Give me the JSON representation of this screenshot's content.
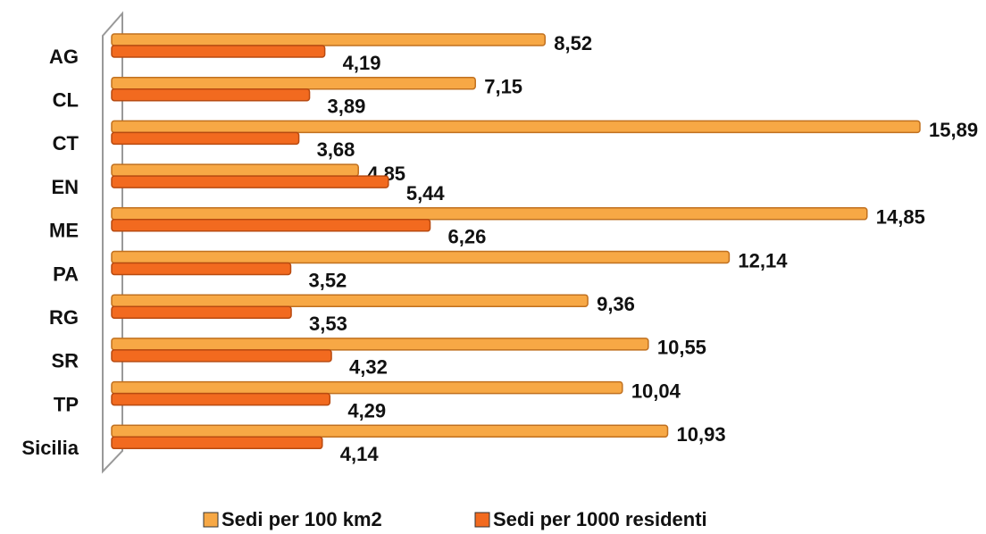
{
  "chart_data": {
    "type": "bar",
    "orientation": "horizontal",
    "categories": [
      "AG",
      "CL",
      "CT",
      "EN",
      "ME",
      "PA",
      "RG",
      "SR",
      "TP",
      "Sicilia"
    ],
    "series": [
      {
        "name": "Sedi per 100 km2",
        "color": "#f7a845",
        "values": [
          8.52,
          7.15,
          15.89,
          4.85,
          14.85,
          12.14,
          9.36,
          10.55,
          10.04,
          10.93
        ],
        "value_labels": [
          "8,52",
          "7,15",
          "15,89",
          "4,85",
          "14,85",
          "12,14",
          "9,36",
          "10,55",
          "10,04",
          "10,93"
        ]
      },
      {
        "name": "Sedi per 1000 residenti",
        "color": "#f26a1f",
        "values": [
          4.19,
          3.89,
          3.68,
          5.44,
          6.26,
          3.52,
          3.53,
          4.32,
          4.29,
          4.14
        ],
        "value_labels": [
          "4,19",
          "3,89",
          "3,68",
          "5,44",
          "6,26",
          "3,52",
          "3,53",
          "4,32",
          "4,29",
          "4,14"
        ]
      }
    ],
    "legend": "bottom"
  }
}
